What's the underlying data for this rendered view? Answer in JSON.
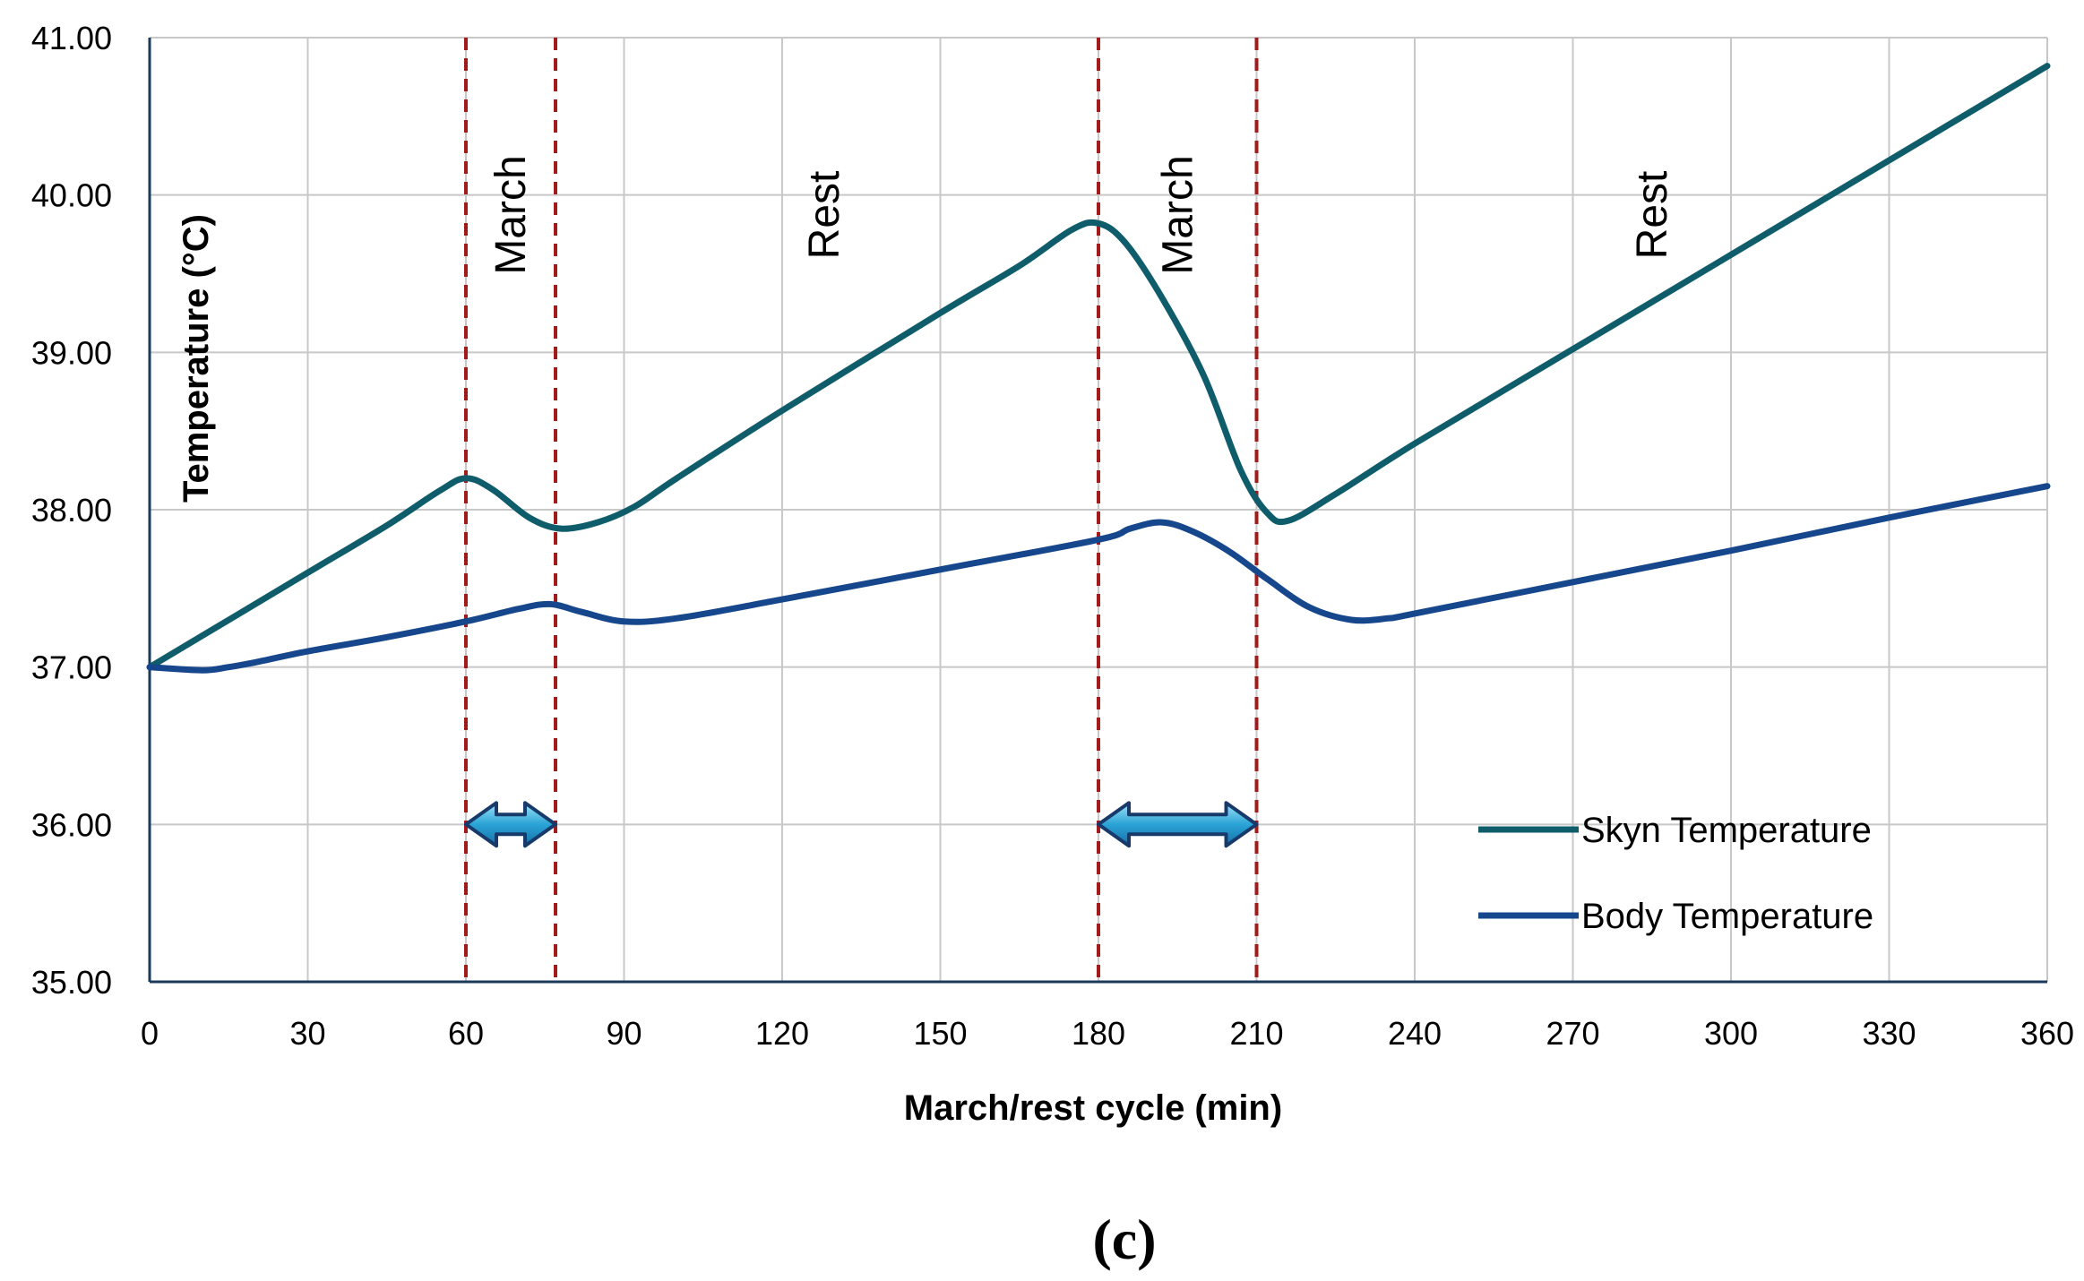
{
  "chart_data": {
    "type": "line",
    "title": "",
    "caption": "(c)",
    "xlabel": "March/rest cycle (min)",
    "ylabel": "Temperature (°C)",
    "xlim": [
      0,
      360
    ],
    "ylim": [
      35,
      41
    ],
    "x_ticks": [
      0,
      30,
      60,
      90,
      120,
      150,
      180,
      210,
      240,
      270,
      300,
      330,
      360
    ],
    "x_tick_labels": [
      "0",
      "30",
      "60",
      "90",
      "120",
      "150",
      "180",
      "210",
      "240",
      "270",
      "300",
      "330",
      "360"
    ],
    "y_ticks": [
      35,
      36,
      37,
      38,
      39,
      40,
      41
    ],
    "y_tick_labels": [
      "35.00",
      "36.00",
      "37.00",
      "38.00",
      "39.00",
      "40.00",
      "41.00"
    ],
    "grid": true,
    "legend_position": "bottom-right",
    "series": [
      {
        "name": "Skyn Temperature",
        "color": "#0f5d6b",
        "x": [
          0,
          15,
          30,
          45,
          55,
          60,
          65,
          72,
          78,
          85,
          92,
          100,
          120,
          150,
          165,
          175,
          180,
          185,
          192,
          200,
          207,
          212,
          216,
          225,
          240,
          270,
          300,
          330,
          360
        ],
        "y": [
          37.0,
          37.3,
          37.6,
          37.9,
          38.12,
          38.2,
          38.13,
          37.95,
          37.88,
          37.92,
          38.02,
          38.2,
          38.63,
          39.25,
          39.55,
          39.78,
          39.82,
          39.7,
          39.35,
          38.85,
          38.25,
          37.98,
          37.93,
          38.1,
          38.42,
          39.02,
          39.62,
          40.22,
          40.82
        ]
      },
      {
        "name": "Body Temperature",
        "color": "#16478c",
        "x": [
          0,
          10,
          15,
          20,
          30,
          45,
          60,
          70,
          76,
          82,
          90,
          100,
          120,
          150,
          180,
          186,
          192,
          198,
          205,
          212,
          220,
          228,
          235,
          240,
          270,
          300,
          330,
          360
        ],
        "y": [
          37.0,
          36.98,
          37.0,
          37.03,
          37.1,
          37.19,
          37.29,
          37.37,
          37.4,
          37.35,
          37.29,
          37.31,
          37.43,
          37.62,
          37.81,
          37.88,
          37.92,
          37.86,
          37.73,
          37.56,
          37.38,
          37.3,
          37.31,
          37.34,
          37.54,
          37.74,
          37.95,
          38.15
        ]
      }
    ],
    "phase_lines": [
      60,
      77,
      180,
      210
    ],
    "phase_labels": [
      {
        "text": "March",
        "x": 68.5
      },
      {
        "text": "Rest",
        "x": 128
      },
      {
        "text": "March",
        "x": 195
      },
      {
        "text": "Rest",
        "x": 285
      }
    ],
    "arrows": [
      {
        "from": 60,
        "to": 77,
        "y": 36.0
      },
      {
        "from": 180,
        "to": 210,
        "y": 36.0
      }
    ],
    "colors": {
      "phase_line": "#a31a1a",
      "arrow_fill": "#2aa3d6",
      "arrow_stroke": "#173a6b",
      "grid": "#c8c8c8",
      "axis": "#1a3a5c"
    }
  }
}
